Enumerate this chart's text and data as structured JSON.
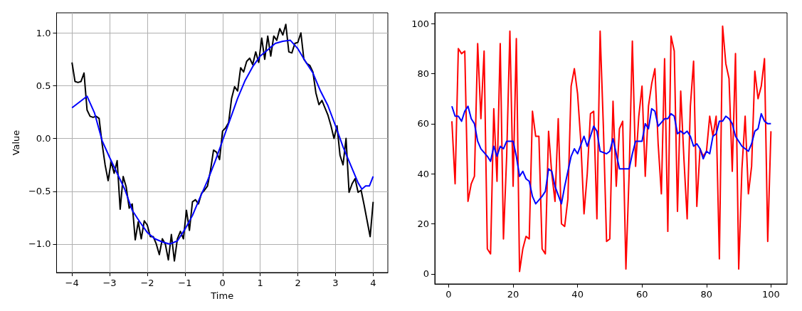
{
  "chart_data": [
    {
      "type": "line",
      "xlabel": "Time",
      "ylabel": "Value",
      "grid": true,
      "xlim": [
        -4.41,
        4.39
      ],
      "ylim": [
        -1.27,
        1.19
      ],
      "xticks": [
        {
          "value": -4,
          "label": "−4"
        },
        {
          "value": -3,
          "label": "−3"
        },
        {
          "value": -2,
          "label": "−2"
        },
        {
          "value": -1,
          "label": "−1"
        },
        0,
        1,
        2,
        3,
        4
      ],
      "yticks": [
        {
          "value": -1,
          "label": "−1.0"
        },
        {
          "value": -0.5,
          "label": "−0.5"
        },
        {
          "value": 0,
          "label": "0.0"
        },
        {
          "value": 0.5,
          "label": "0.5"
        },
        {
          "value": 1,
          "label": "1.0"
        }
      ],
      "series": [
        {
          "color": "#000000",
          "x": [
            -4,
            -3.92,
            -3.84,
            -3.76,
            -3.68,
            -3.6,
            -3.52,
            -3.44,
            -3.36,
            -3.28,
            -3.2,
            -3.12,
            -3.04,
            -2.96,
            -2.88,
            -2.8,
            -2.72,
            -2.64,
            -2.56,
            -2.48,
            -2.4,
            -2.32,
            -2.24,
            -2.16,
            -2.08,
            -2.0,
            -1.92,
            -1.84,
            -1.76,
            -1.68,
            -1.6,
            -1.52,
            -1.44,
            -1.36,
            -1.28,
            -1.2,
            -1.12,
            -1.04,
            -0.96,
            -0.88,
            -0.8,
            -0.72,
            -0.64,
            -0.56,
            -0.48,
            -0.4,
            -0.32,
            -0.24,
            -0.16,
            -0.08,
            0,
            0.08,
            0.16,
            0.24,
            0.32,
            0.4,
            0.48,
            0.56,
            0.64,
            0.72,
            0.8,
            0.88,
            0.96,
            1.04,
            1.12,
            1.2,
            1.28,
            1.36,
            1.44,
            1.52,
            1.6,
            1.68,
            1.76,
            1.84,
            1.92,
            2.0,
            2.08,
            2.16,
            2.24,
            2.32,
            2.4,
            2.48,
            2.56,
            2.64,
            2.72,
            2.8,
            2.88,
            2.96,
            3.04,
            3.12,
            3.2,
            3.28,
            3.36,
            3.44,
            3.52,
            3.6,
            3.68,
            3.76,
            3.84,
            3.92,
            4
          ],
          "values": [
            0.72,
            0.54,
            0.53,
            0.54,
            0.62,
            0.27,
            0.21,
            0.2,
            0.21,
            0.19,
            -0.05,
            -0.25,
            -0.4,
            -0.22,
            -0.33,
            -0.21,
            -0.67,
            -0.36,
            -0.46,
            -0.66,
            -0.62,
            -0.96,
            -0.79,
            -0.95,
            -0.78,
            -0.82,
            -0.93,
            -0.93,
            -1.0,
            -1.1,
            -0.95,
            -1.0,
            -1.15,
            -0.91,
            -1.16,
            -0.95,
            -0.88,
            -0.95,
            -0.68,
            -0.87,
            -0.6,
            -0.58,
            -0.62,
            -0.52,
            -0.49,
            -0.45,
            -0.3,
            -0.11,
            -0.13,
            -0.2,
            0.07,
            0.1,
            0.15,
            0.38,
            0.49,
            0.45,
            0.67,
            0.63,
            0.73,
            0.76,
            0.7,
            0.82,
            0.72,
            0.95,
            0.75,
            0.97,
            0.78,
            0.97,
            0.93,
            1.04,
            0.98,
            1.08,
            0.82,
            0.81,
            0.9,
            0.91,
            1.0,
            0.75,
            0.71,
            0.69,
            0.63,
            0.43,
            0.32,
            0.36,
            0.29,
            0.22,
            0.12,
            0.0,
            0.12,
            -0.16,
            -0.25,
            0.0,
            -0.51,
            -0.43,
            -0.38,
            -0.51,
            -0.49,
            -0.63,
            -0.78,
            -0.93,
            -0.6
          ]
        },
        {
          "color": "#0000ff",
          "x": [
            -4,
            -3.6,
            -3.4,
            -3.2,
            -3.0,
            -2.8,
            -2.6,
            -2.4,
            -2.2,
            -2.0,
            -1.8,
            -1.6,
            -1.4,
            -1.2,
            -1.0,
            -0.8,
            -0.6,
            -0.4,
            -0.2,
            0,
            0.2,
            0.4,
            0.6,
            0.8,
            1.0,
            1.2,
            1.4,
            1.6,
            1.8,
            2.0,
            2.2,
            2.4,
            2.6,
            2.8,
            3.0,
            3.2,
            3.4,
            3.6,
            3.7,
            3.8,
            3.9,
            4.0
          ],
          "values": [
            0.29,
            0.4,
            0.24,
            -0.02,
            -0.18,
            -0.33,
            -0.48,
            -0.68,
            -0.79,
            -0.89,
            -0.95,
            -0.98,
            -1.0,
            -0.97,
            -0.86,
            -0.73,
            -0.56,
            -0.4,
            -0.22,
            -0.02,
            0.18,
            0.38,
            0.55,
            0.68,
            0.78,
            0.84,
            0.9,
            0.92,
            0.93,
            0.85,
            0.73,
            0.62,
            0.45,
            0.31,
            0.12,
            -0.08,
            -0.25,
            -0.42,
            -0.48,
            -0.45,
            -0.45,
            -0.36
          ]
        }
      ]
    },
    {
      "type": "line",
      "grid": false,
      "xlim": [
        -4.3,
        105
      ],
      "ylim": [
        -4,
        104.3
      ],
      "xticks": [
        0,
        20,
        40,
        60,
        80,
        100
      ],
      "yticks": [
        0,
        20,
        40,
        60,
        80,
        100
      ],
      "series": [
        {
          "color": "#ff0000",
          "x": [
            1,
            2,
            3,
            4,
            5,
            6,
            7,
            8,
            9,
            10,
            11,
            12,
            13,
            14,
            15,
            16,
            17,
            18,
            19,
            20,
            21,
            22,
            23,
            24,
            25,
            26,
            27,
            28,
            29,
            30,
            31,
            32,
            33,
            34,
            35,
            36,
            37,
            38,
            39,
            40,
            41,
            42,
            43,
            44,
            45,
            46,
            47,
            48,
            49,
            50,
            51,
            52,
            53,
            54,
            55,
            56,
            57,
            58,
            59,
            60,
            61,
            62,
            63,
            64,
            65,
            66,
            67,
            68,
            69,
            70,
            71,
            72,
            73,
            74,
            75,
            76,
            77,
            78,
            79,
            80,
            81,
            82,
            83,
            84,
            85,
            86,
            87,
            88,
            89,
            90,
            91,
            92,
            93,
            94,
            95,
            96,
            97,
            98,
            99,
            100
          ],
          "values": [
            61,
            36,
            90,
            88,
            89,
            29,
            36,
            39,
            92,
            62,
            89,
            10,
            8,
            66,
            37,
            92,
            14,
            47,
            97,
            35,
            94,
            1,
            10,
            15,
            14,
            65,
            55,
            55,
            10,
            8,
            57,
            40,
            29,
            62,
            20,
            19,
            30,
            75,
            82,
            72,
            53,
            24,
            40,
            64,
            65,
            22,
            97,
            59,
            13,
            14,
            69,
            35,
            58,
            61,
            2,
            40,
            93,
            43,
            63,
            75,
            39,
            67,
            76,
            82,
            52,
            32,
            86,
            17,
            95,
            89,
            25,
            73,
            46,
            22,
            67,
            85,
            27,
            50,
            47,
            49,
            63,
            55,
            63,
            6,
            99,
            84,
            78,
            41,
            88,
            2,
            42,
            63,
            32,
            43,
            81,
            70,
            75,
            86,
            13,
            57
          ]
        },
        {
          "color": "#0000ff",
          "x": [
            1,
            2,
            3,
            4,
            5,
            6,
            7,
            8,
            9,
            10,
            12,
            13,
            14,
            15,
            16,
            17,
            18,
            20,
            21,
            22,
            23,
            24,
            25,
            26,
            27,
            29,
            30,
            31,
            32,
            33,
            35,
            36,
            38,
            39,
            40,
            42,
            43,
            45,
            46,
            47,
            49,
            50,
            51,
            52,
            53,
            55,
            56,
            57,
            58,
            60,
            61,
            62,
            63,
            64,
            65,
            67,
            68,
            69,
            70,
            71,
            72,
            73,
            74,
            75,
            76,
            77,
            78,
            79,
            80,
            81,
            82,
            83,
            84,
            85,
            86,
            87,
            88,
            89,
            90,
            91,
            92,
            93,
            94,
            95,
            96,
            97,
            98,
            99,
            100
          ],
          "values": [
            67,
            63,
            63,
            61,
            65,
            67,
            62,
            60,
            53,
            50,
            47,
            45,
            51,
            47,
            51,
            50,
            53,
            53,
            47,
            39,
            41,
            38,
            37,
            31,
            28,
            31,
            33,
            42,
            41,
            35,
            28,
            35,
            47,
            50,
            48,
            55,
            51,
            59,
            57,
            49,
            48,
            49,
            54,
            48,
            42,
            42,
            42,
            48,
            53,
            53,
            60,
            58,
            66,
            65,
            59,
            62,
            62,
            64,
            63,
            56,
            57,
            56,
            57,
            55,
            51,
            52,
            50,
            46,
            49,
            48,
            55,
            56,
            61,
            61,
            63,
            62,
            60,
            55,
            53,
            51,
            50,
            49,
            52,
            57,
            58,
            64,
            61,
            60,
            60
          ]
        }
      ]
    }
  ]
}
